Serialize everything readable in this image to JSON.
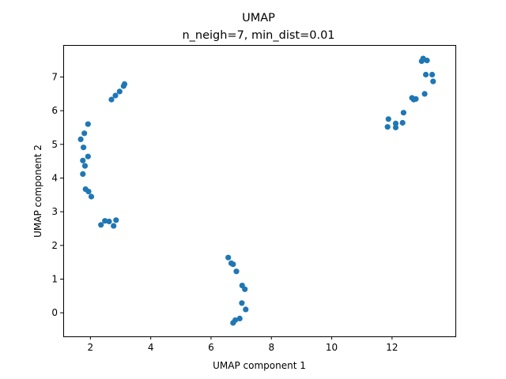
{
  "chart_data": {
    "type": "scatter",
    "title": "UMAP",
    "subtitle": "n_neigh=7, min_dist=0.01",
    "xlabel": "UMAP component 1",
    "ylabel": "UMAP component 2",
    "xlim": [
      1.1,
      14.1
    ],
    "ylim": [
      -0.7,
      7.95
    ],
    "xticks": [
      2,
      4,
      6,
      8,
      10,
      12
    ],
    "yticks": [
      0,
      1,
      2,
      3,
      4,
      5,
      6,
      7
    ],
    "grid": false,
    "color": "#1f77b4",
    "points": [
      {
        "x": 2.7,
        "y": 6.33
      },
      {
        "x": 2.83,
        "y": 6.45
      },
      {
        "x": 2.97,
        "y": 6.57
      },
      {
        "x": 3.1,
        "y": 6.73
      },
      {
        "x": 3.13,
        "y": 6.79
      },
      {
        "x": 1.68,
        "y": 5.15
      },
      {
        "x": 1.8,
        "y": 5.33
      },
      {
        "x": 1.92,
        "y": 5.6
      },
      {
        "x": 1.77,
        "y": 4.91
      },
      {
        "x": 1.92,
        "y": 4.64
      },
      {
        "x": 1.75,
        "y": 4.52
      },
      {
        "x": 1.82,
        "y": 4.36
      },
      {
        "x": 1.75,
        "y": 4.12
      },
      {
        "x": 1.84,
        "y": 3.67
      },
      {
        "x": 1.94,
        "y": 3.6
      },
      {
        "x": 2.03,
        "y": 3.45
      },
      {
        "x": 2.35,
        "y": 2.61
      },
      {
        "x": 2.48,
        "y": 2.73
      },
      {
        "x": 2.62,
        "y": 2.71
      },
      {
        "x": 2.77,
        "y": 2.58
      },
      {
        "x": 2.85,
        "y": 2.75
      },
      {
        "x": 6.57,
        "y": 1.64
      },
      {
        "x": 6.67,
        "y": 1.47
      },
      {
        "x": 6.73,
        "y": 1.44
      },
      {
        "x": 6.84,
        "y": 1.23
      },
      {
        "x": 7.03,
        "y": 0.81
      },
      {
        "x": 7.12,
        "y": 0.7
      },
      {
        "x": 7.02,
        "y": 0.29
      },
      {
        "x": 7.15,
        "y": 0.1
      },
      {
        "x": 6.95,
        "y": -0.17
      },
      {
        "x": 6.8,
        "y": -0.22
      },
      {
        "x": 6.73,
        "y": -0.3
      },
      {
        "x": 12.98,
        "y": 7.47
      },
      {
        "x": 13.03,
        "y": 7.55
      },
      {
        "x": 13.16,
        "y": 7.49
      },
      {
        "x": 13.12,
        "y": 7.07
      },
      {
        "x": 13.33,
        "y": 7.07
      },
      {
        "x": 13.36,
        "y": 6.87
      },
      {
        "x": 13.08,
        "y": 6.5
      },
      {
        "x": 12.66,
        "y": 6.38
      },
      {
        "x": 12.72,
        "y": 6.33
      },
      {
        "x": 12.79,
        "y": 6.35
      },
      {
        "x": 12.38,
        "y": 5.94
      },
      {
        "x": 11.88,
        "y": 5.75
      },
      {
        "x": 12.12,
        "y": 5.62
      },
      {
        "x": 12.35,
        "y": 5.64
      },
      {
        "x": 11.85,
        "y": 5.52
      },
      {
        "x": 12.12,
        "y": 5.5
      }
    ]
  }
}
